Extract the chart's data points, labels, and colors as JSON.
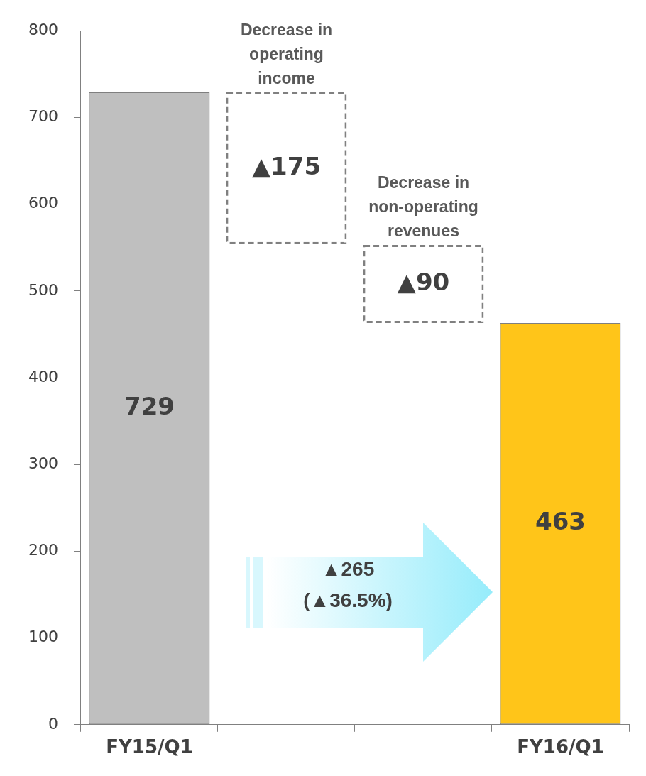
{
  "chart_data": {
    "type": "bar",
    "categories": [
      "FY15/Q1",
      null,
      null,
      "FY16/Q1"
    ],
    "values": [
      729,
      -175,
      -90,
      463
    ],
    "base": [
      0,
      729,
      553,
      0
    ],
    "colors": [
      "#bfbfbf",
      "#ffffff",
      "#ffffff",
      "#ffc519"
    ],
    "value_labels": [
      "729",
      "▲175",
      "▲90",
      "463"
    ],
    "ylim": [
      0,
      800
    ],
    "yticks": [
      0,
      100,
      200,
      300,
      400,
      500,
      600,
      700,
      800
    ],
    "annotations": [
      "Decrease in operating income",
      "Decrease in non-operating revenues",
      "▲265 (▲36.5%)"
    ]
  }
}
